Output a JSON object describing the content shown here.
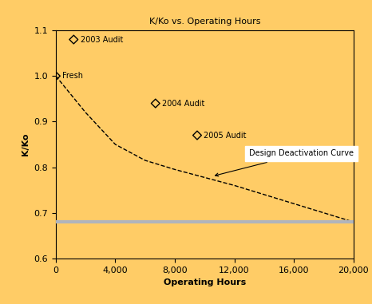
{
  "chart_data": {
    "type": "scatter",
    "title": "K/Ko vs. Operating Hours",
    "x_label": "Operating Hours",
    "y_label": "K/Ko",
    "xlim": [
      0,
      20000
    ],
    "xticks": [
      0,
      {
        "value": 4000,
        "label": "4,000"
      },
      {
        "value": 8000,
        "label": "8,000"
      },
      {
        "value": 12000,
        "label": "12,000"
      },
      {
        "value": 16000,
        "label": "16,000"
      },
      {
        "value": 20000,
        "label": "20,000"
      }
    ],
    "ylim": [
      0.6,
      1.1
    ],
    "yticks": [
      0.6,
      0.7,
      0.8,
      0.9,
      1.0,
      1.1
    ],
    "grid": false,
    "series": [
      {
        "type": "scatter",
        "marker": "diamond",
        "color": "#000000",
        "x": [
          0,
          1200,
          6700,
          9500
        ],
        "values": [
          1.0,
          1.08,
          0.94,
          0.87
        ],
        "point_labels": [
          "Fresh",
          "2003 Audit",
          "2004 Audit",
          "2005 Audit"
        ]
      },
      {
        "type": "line",
        "line_style": "dashed",
        "color": "#000000",
        "x": [
          0,
          2000,
          4000,
          6000,
          8000,
          12000,
          16000,
          20000
        ],
        "values": [
          1.0,
          0.92,
          0.85,
          0.815,
          0.795,
          0.76,
          0.72,
          0.68
        ]
      },
      {
        "type": "line",
        "line_style": "solid",
        "color": "#b0b4bc",
        "x": [
          0,
          20000
        ],
        "values": [
          0.68,
          0.68
        ]
      }
    ],
    "annotations": [
      {
        "text": "Design Deactivation Curve",
        "x": 13000,
        "y": 0.83,
        "target_x": 10500,
        "target_y": 0.78
      }
    ]
  }
}
